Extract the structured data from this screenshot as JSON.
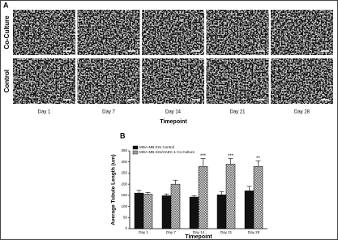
{
  "panel_a": {
    "label": "A",
    "rows": [
      "Co-Culture",
      "Control"
    ],
    "columns": [
      "Day 1",
      "Day 7",
      "Day 14",
      "Day 21",
      "Day 28"
    ],
    "xlabel": "Timepoint"
  },
  "chart_data": {
    "type": "bar",
    "label": "B",
    "xlabel": "Timepoint",
    "ylabel": "Average Tubule Length (um)",
    "categories": [
      "Day 1",
      "Day 7",
      "Day 14",
      "Day 21",
      "Day 28"
    ],
    "series": [
      {
        "name": "MDA-MB-231 Control",
        "color": "#111111",
        "values": [
          160,
          148,
          142,
          152,
          170
        ],
        "errors": [
          12,
          8,
          6,
          15,
          20
        ]
      },
      {
        "name": "MDA-MB-231/HAEC-1 Co-Culture",
        "color": "#bbbbbb",
        "pattern": "crosshatch",
        "values": [
          155,
          200,
          280,
          290,
          280
        ],
        "errors": [
          8,
          18,
          35,
          25,
          25
        ]
      }
    ],
    "annotations": [
      {
        "text": "***",
        "category": "Day 14"
      },
      {
        "text": "***",
        "category": "Day 21"
      },
      {
        "text": "**",
        "category": "Day 28"
      }
    ],
    "ylim": [
      0,
      350
    ],
    "yticks": [
      0,
      50,
      100,
      150,
      200,
      250,
      300,
      350
    ],
    "legend": "top-left"
  }
}
